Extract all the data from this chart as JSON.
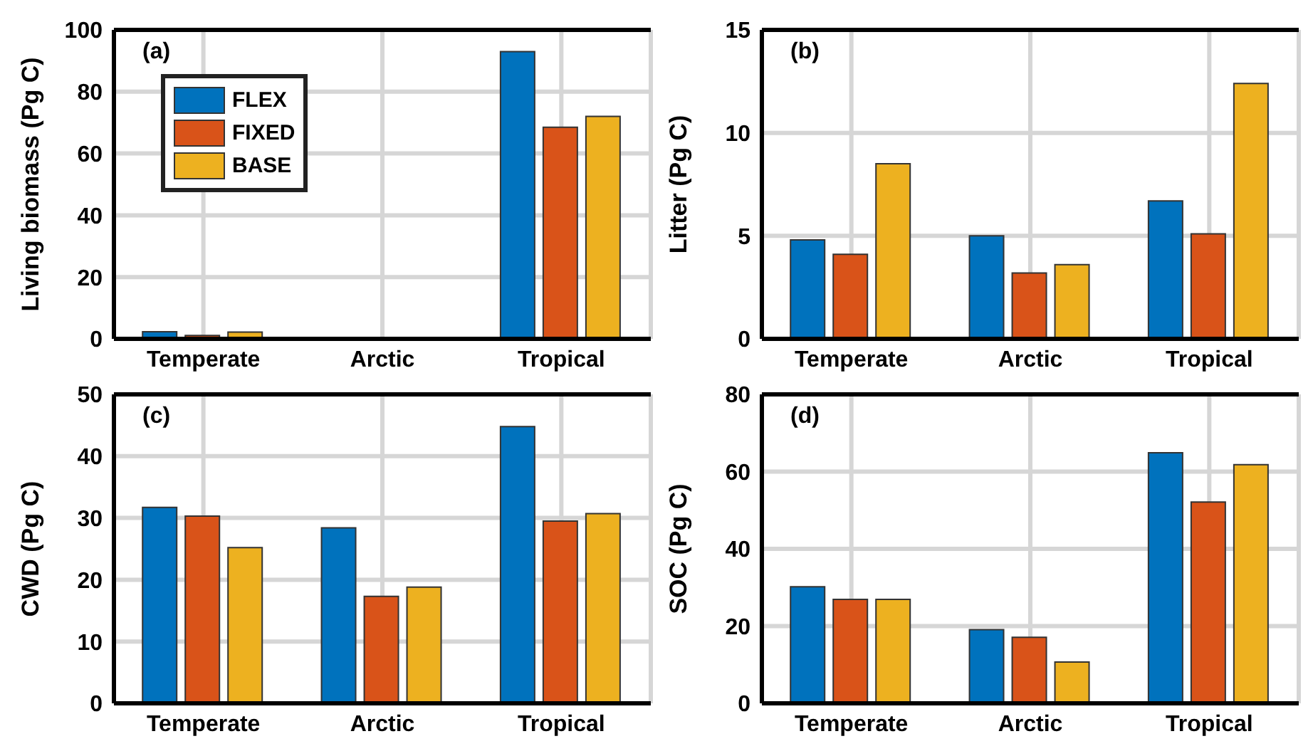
{
  "chart_data": [
    {
      "type": "bar",
      "ylabel": "Living biomass (Pg C)",
      "annotations": [
        "(a)"
      ],
      "categories": [
        "Temperate",
        "Arctic",
        "Tropical"
      ],
      "ylim": [
        0,
        100
      ],
      "yticks": [
        0,
        20,
        40,
        60,
        80,
        100
      ],
      "grid": true,
      "legend": "top left",
      "series": [
        {
          "name": "FLEX",
          "color": "#0072bd",
          "values": [
            2.3,
            0,
            93
          ]
        },
        {
          "name": "FIXED",
          "color": "#d95319",
          "values": [
            1.1,
            0,
            68.5
          ]
        },
        {
          "name": "BASE",
          "color": "#edb120",
          "values": [
            2.2,
            0,
            72
          ]
        }
      ]
    },
    {
      "type": "bar",
      "ylabel": "Litter (Pg C)",
      "annotations": [
        "(b)"
      ],
      "categories": [
        "Temperate",
        "Arctic",
        "Tropical"
      ],
      "ylim": [
        0,
        15
      ],
      "yticks": [
        0,
        5,
        10,
        15
      ],
      "grid": true,
      "series": [
        {
          "color": "#0072bd",
          "values": [
            4.8,
            5.0,
            6.7
          ]
        },
        {
          "color": "#d95319",
          "values": [
            4.1,
            3.2,
            5.1
          ]
        },
        {
          "color": "#edb120",
          "values": [
            8.5,
            3.6,
            12.4
          ]
        }
      ]
    },
    {
      "type": "bar",
      "ylabel": "CWD (Pg C)",
      "annotations": [
        "(c)"
      ],
      "categories": [
        "Temperate",
        "Arctic",
        "Tropical"
      ],
      "ylim": [
        0,
        50
      ],
      "yticks": [
        0,
        10,
        20,
        30,
        40,
        50
      ],
      "grid": true,
      "series": [
        {
          "color": "#0072bd",
          "values": [
            31.7,
            28.4,
            44.8
          ]
        },
        {
          "color": "#d95319",
          "values": [
            30.3,
            17.3,
            29.5
          ]
        },
        {
          "color": "#edb120",
          "values": [
            25.2,
            18.8,
            30.7
          ]
        }
      ]
    },
    {
      "type": "bar",
      "ylabel": "SOC (Pg C)",
      "annotations": [
        "(d)"
      ],
      "categories": [
        "Temperate",
        "Arctic",
        "Tropical"
      ],
      "ylim": [
        0,
        80
      ],
      "yticks": [
        0,
        20,
        40,
        60,
        80
      ],
      "grid": true,
      "series": [
        {
          "color": "#0072bd",
          "values": [
            30.2,
            19.1,
            64.9
          ]
        },
        {
          "color": "#d95319",
          "values": [
            26.9,
            17.1,
            52.1
          ]
        },
        {
          "color": "#edb120",
          "values": [
            26.9,
            10.7,
            61.8
          ]
        }
      ]
    }
  ]
}
